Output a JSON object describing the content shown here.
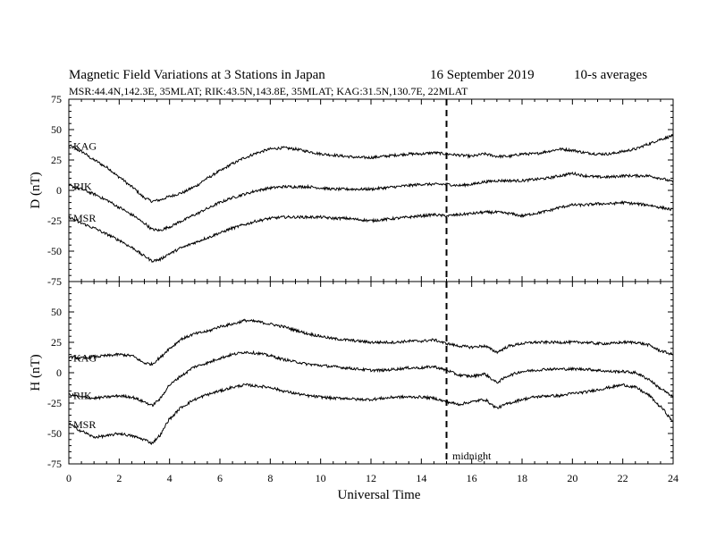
{
  "title": "Magnetic Field Variations at 3 Stations in Japan",
  "date": "16 September 2019",
  "averaging": "10-s averages",
  "subtitle": "MSR:44.4N,142.3E, 35MLAT;  RIK:43.5N,143.8E, 35MLAT;  KAG:31.5N,130.7E, 22MLAT",
  "xlabel": "Universal Time",
  "midnight_label": "midnight",
  "chart_data": [
    {
      "type": "line",
      "panel": "D",
      "ylabel": "D (nT)",
      "xlim": [
        0,
        24
      ],
      "ylim": [
        -75,
        75
      ],
      "yticks": [
        75,
        50,
        25,
        0,
        -25,
        -50,
        -75
      ],
      "xticks": [
        0,
        2,
        4,
        6,
        8,
        10,
        12,
        14,
        16,
        18,
        20,
        22,
        24
      ],
      "midnight_ut": 15,
      "series": [
        {
          "name": "KAG",
          "x": [
            0,
            0.5,
            1,
            1.5,
            2,
            2.5,
            3,
            3.3,
            3.6,
            4,
            4.5,
            5,
            5.5,
            6,
            6.5,
            7,
            7.5,
            8,
            8.5,
            9,
            9.5,
            10,
            10.5,
            11,
            11.5,
            12,
            12.5,
            13,
            13.5,
            14,
            14.5,
            15,
            15.5,
            16,
            16.5,
            17,
            17.5,
            18,
            18.5,
            19,
            19.5,
            20,
            20.5,
            21,
            21.5,
            22,
            22.5,
            23,
            23.5,
            24
          ],
          "y": [
            37,
            32,
            25,
            19,
            11,
            3,
            -6,
            -9,
            -8,
            -5,
            -2,
            3,
            10,
            16,
            22,
            27,
            31,
            34,
            35,
            34,
            32,
            30,
            29,
            28,
            27,
            27,
            28,
            29,
            30,
            30,
            31,
            30,
            29,
            28,
            30,
            28,
            28,
            30,
            30,
            32,
            34,
            33,
            31,
            30,
            30,
            32,
            34,
            38,
            42,
            45
          ]
        },
        {
          "name": "RIK",
          "x": [
            0,
            0.5,
            1,
            1.5,
            2,
            2.5,
            3,
            3.3,
            3.6,
            4,
            4.5,
            5,
            5.5,
            6,
            6.5,
            7,
            7.5,
            8,
            8.5,
            9,
            9.5,
            10,
            10.5,
            11,
            11.5,
            12,
            12.5,
            13,
            13.5,
            14,
            14.5,
            15,
            15.5,
            16,
            16.5,
            17,
            17.5,
            18,
            18.5,
            19,
            19.5,
            20,
            20.5,
            21,
            21.5,
            22,
            22.5,
            23,
            23.5,
            24
          ],
          "y": [
            4,
            1,
            -3,
            -8,
            -14,
            -20,
            -27,
            -32,
            -33,
            -30,
            -25,
            -20,
            -15,
            -10,
            -6,
            -3,
            0,
            2,
            3,
            3,
            3,
            2,
            1,
            1,
            1,
            1,
            2,
            3,
            4,
            5,
            5,
            5,
            4,
            5,
            7,
            8,
            8,
            8,
            9,
            10,
            12,
            14,
            12,
            11,
            11,
            12,
            12,
            12,
            10,
            7
          ]
        },
        {
          "name": "MSR",
          "x": [
            0,
            0.5,
            1,
            1.5,
            2,
            2.5,
            3,
            3.3,
            3.6,
            4,
            4.5,
            5,
            5.5,
            6,
            6.5,
            7,
            7.5,
            8,
            8.5,
            9,
            9.5,
            10,
            10.5,
            11,
            11.5,
            12,
            12.5,
            13,
            13.5,
            14,
            14.5,
            15,
            15.5,
            16,
            16.5,
            17,
            17.5,
            18,
            18.5,
            19,
            19.5,
            20,
            20.5,
            21,
            21.5,
            22,
            22.5,
            23,
            23.5,
            24
          ],
          "y": [
            -22,
            -27,
            -31,
            -36,
            -41,
            -47,
            -54,
            -58,
            -57,
            -52,
            -47,
            -43,
            -39,
            -35,
            -31,
            -28,
            -25,
            -23,
            -22,
            -22,
            -22,
            -22,
            -23,
            -23,
            -24,
            -25,
            -24,
            -23,
            -22,
            -21,
            -20,
            -21,
            -20,
            -19,
            -18,
            -18,
            -19,
            -21,
            -19,
            -17,
            -14,
            -12,
            -12,
            -11,
            -11,
            -10,
            -11,
            -12,
            -14,
            -16
          ]
        }
      ]
    },
    {
      "type": "line",
      "panel": "H",
      "ylabel": "H (nT)",
      "xlim": [
        0,
        24
      ],
      "ylim": [
        -75,
        75
      ],
      "yticks": [
        75,
        50,
        25,
        0,
        -25,
        -50,
        -75
      ],
      "xticks": [
        0,
        2,
        4,
        6,
        8,
        10,
        12,
        14,
        16,
        18,
        20,
        22,
        24
      ],
      "midnight_ut": 15,
      "series": [
        {
          "name": "KAG",
          "x": [
            0,
            0.5,
            1,
            1.5,
            2,
            2.5,
            3,
            3.3,
            3.6,
            4,
            4.5,
            5,
            5.5,
            6,
            6.5,
            7,
            7.5,
            8,
            8.5,
            9,
            9.5,
            10,
            10.5,
            11,
            11.5,
            12,
            12.5,
            13,
            13.5,
            14,
            14.5,
            15,
            15.5,
            16,
            16.5,
            17,
            17.5,
            18,
            18.5,
            19,
            19.5,
            20,
            20.5,
            21,
            21.5,
            22,
            22.5,
            23,
            23.5,
            24
          ],
          "y": [
            13,
            12,
            13,
            14,
            15,
            14,
            8,
            7,
            12,
            20,
            28,
            32,
            34,
            38,
            40,
            43,
            42,
            40,
            38,
            35,
            32,
            30,
            28,
            27,
            26,
            25,
            25,
            25,
            26,
            26,
            27,
            24,
            22,
            21,
            22,
            17,
            22,
            24,
            25,
            25,
            25,
            25,
            25,
            24,
            24,
            25,
            25,
            23,
            18,
            15
          ]
        },
        {
          "name": "RIK",
          "x": [
            0,
            0.5,
            1,
            1.5,
            2,
            2.5,
            3,
            3.3,
            3.6,
            4,
            4.5,
            5,
            5.5,
            6,
            6.5,
            7,
            7.5,
            8,
            8.5,
            9,
            9.5,
            10,
            10.5,
            11,
            11.5,
            12,
            12.5,
            13,
            13.5,
            14,
            14.5,
            15,
            15.5,
            16,
            16.5,
            17,
            17.5,
            18,
            18.5,
            19,
            19.5,
            20,
            20.5,
            21,
            21.5,
            22,
            22.5,
            23,
            23.5,
            24
          ],
          "y": [
            -18,
            -20,
            -21,
            -20,
            -19,
            -20,
            -24,
            -27,
            -22,
            -10,
            -2,
            5,
            8,
            12,
            15,
            17,
            16,
            14,
            11,
            9,
            7,
            6,
            5,
            4,
            3,
            2,
            2,
            3,
            4,
            4,
            5,
            2,
            -2,
            -3,
            -1,
            -8,
            -2,
            1,
            2,
            3,
            3,
            3,
            3,
            2,
            1,
            1,
            0,
            -5,
            -13,
            -20
          ]
        },
        {
          "name": "MSR",
          "x": [
            0,
            0.5,
            1,
            1.5,
            2,
            2.5,
            3,
            3.3,
            3.6,
            4,
            4.5,
            5,
            5.5,
            6,
            6.5,
            7,
            7.5,
            8,
            8.5,
            9,
            9.5,
            10,
            10.5,
            11,
            11.5,
            12,
            12.5,
            13,
            13.5,
            14,
            14.5,
            15,
            15.5,
            16,
            16.5,
            17,
            17.5,
            18,
            18.5,
            19,
            19.5,
            20,
            20.5,
            21,
            21.5,
            22,
            22.5,
            23,
            23.5,
            24
          ],
          "y": [
            -42,
            -48,
            -53,
            -52,
            -50,
            -52,
            -55,
            -58,
            -52,
            -38,
            -28,
            -22,
            -18,
            -15,
            -12,
            -10,
            -11,
            -12,
            -15,
            -17,
            -19,
            -20,
            -21,
            -21,
            -22,
            -22,
            -21,
            -20,
            -20,
            -20,
            -21,
            -24,
            -26,
            -24,
            -22,
            -29,
            -25,
            -22,
            -20,
            -19,
            -19,
            -17,
            -16,
            -14,
            -12,
            -10,
            -12,
            -18,
            -28,
            -40
          ]
        }
      ]
    }
  ]
}
